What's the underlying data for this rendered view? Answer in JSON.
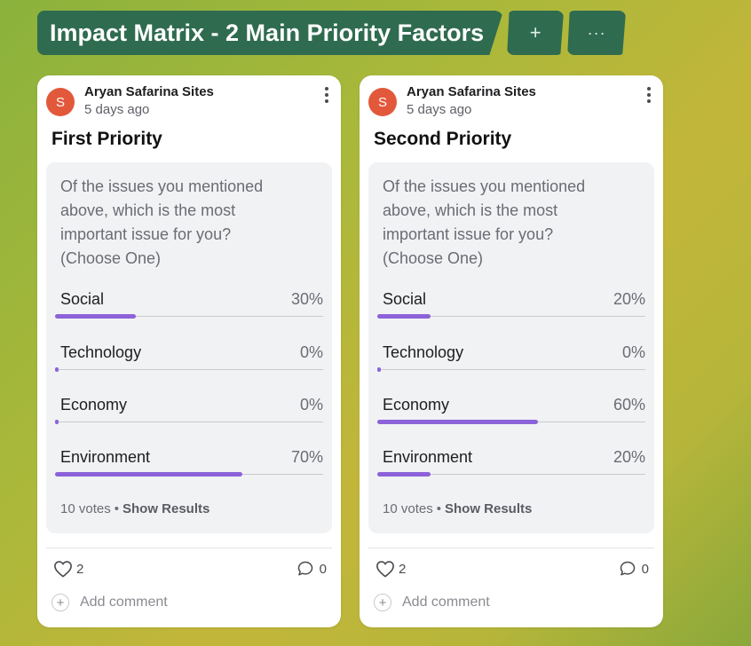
{
  "header": {
    "title": "Impact Matrix - 2 Main Priority Factors",
    "add_label": "+",
    "more_label": "···"
  },
  "colors": {
    "brand_green": "#2f6b4f",
    "avatar_orange": "#e2583b",
    "poll_bar": "#8c62d9"
  },
  "cards": [
    {
      "author": "Aryan Safarina Sites",
      "avatar_initial": "S",
      "time": "5 days ago",
      "title": "First Priority",
      "question": "Of the issues you mentioned above, which is the most important issue for you? (Choose One)",
      "options": [
        {
          "label": "Social",
          "percent_label": "30%",
          "percent": 30
        },
        {
          "label": "Technology",
          "percent_label": "0%",
          "percent": 0
        },
        {
          "label": "Economy",
          "percent_label": "0%",
          "percent": 0
        },
        {
          "label": "Environment",
          "percent_label": "70%",
          "percent": 70
        }
      ],
      "votes": "10 votes",
      "show_results": "Show Results",
      "likes": "2",
      "comments": "0",
      "add_comment": "Add comment"
    },
    {
      "author": "Aryan Safarina Sites",
      "avatar_initial": "S",
      "time": "5 days ago",
      "title": "Second Priority",
      "question": "Of the issues you mentioned above, which is the most important issue for you? (Choose One)",
      "options": [
        {
          "label": "Social",
          "percent_label": "20%",
          "percent": 20
        },
        {
          "label": "Technology",
          "percent_label": "0%",
          "percent": 0
        },
        {
          "label": "Economy",
          "percent_label": "60%",
          "percent": 60
        },
        {
          "label": "Environment",
          "percent_label": "20%",
          "percent": 20
        }
      ],
      "votes": "10 votes",
      "show_results": "Show Results",
      "likes": "2",
      "comments": "0",
      "add_comment": "Add comment"
    }
  ]
}
